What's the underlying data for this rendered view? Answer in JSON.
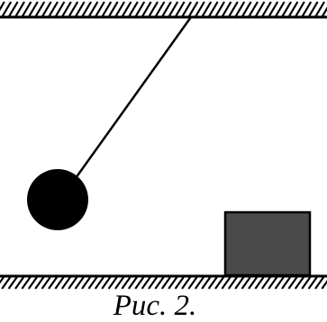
{
  "figure": {
    "caption": "Рис. 2."
  },
  "colors": {
    "ink": "#000000",
    "block": "#4a4a4a",
    "background": "#ffffff"
  }
}
